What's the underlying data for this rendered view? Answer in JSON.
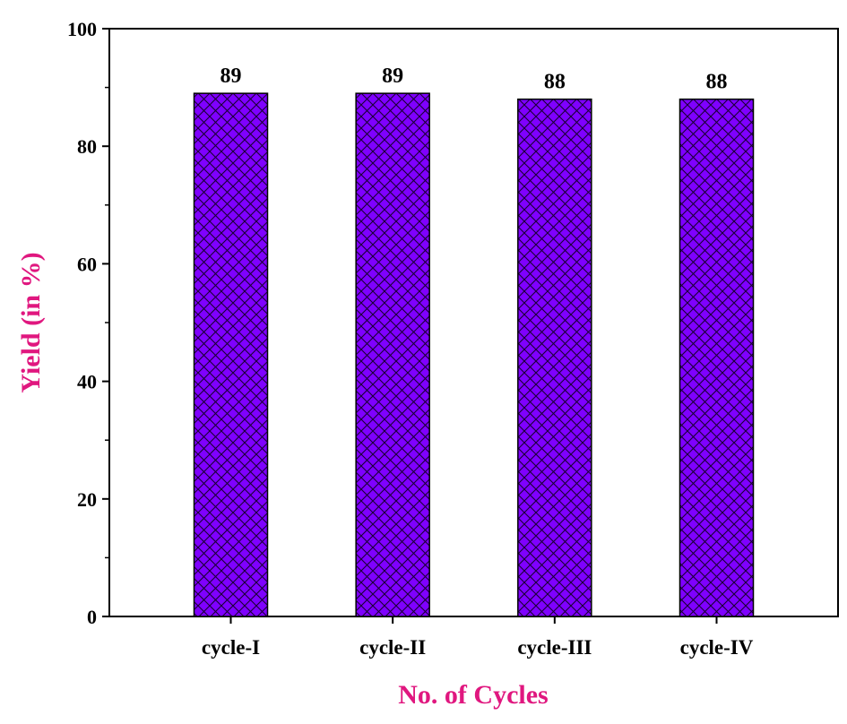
{
  "chart_data": {
    "type": "bar",
    "categories": [
      "cycle-I",
      "cycle-II",
      "cycle-III",
      "cycle-IV"
    ],
    "values": [
      89,
      89,
      88,
      88
    ],
    "data_labels": [
      "89",
      "89",
      "88",
      "88"
    ],
    "xlabel": "No. of Cycles",
    "ylabel": "Yield (in %)",
    "ylim": [
      0,
      100
    ],
    "yticks": [
      "0",
      "20",
      "40",
      "60",
      "80",
      "100"
    ],
    "bar_fill": "#7f00ff",
    "bar_hatch": "crosshatch",
    "hatch_color": "#1a0033",
    "label_color": "#e0177f",
    "grid": false,
    "legend": "none"
  }
}
